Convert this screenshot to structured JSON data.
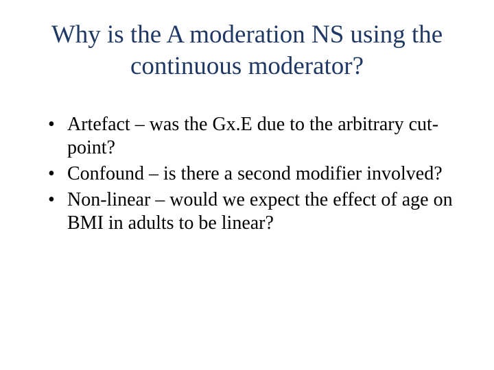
{
  "slide": {
    "title": "Why is the A moderation NS using the continuous moderator?",
    "title_color": "#1f3864",
    "title_fontsize": 37,
    "body_fontsize": 28,
    "body_color": "#000000",
    "background_color": "#ffffff",
    "bullets": [
      "Artefact – was the Gx.E due to the arbitrary cut-point?",
      "Confound – is there a second modifier involved?",
      "Non-linear – would we expect the effect of age on BMI in adults to be linear?"
    ]
  }
}
